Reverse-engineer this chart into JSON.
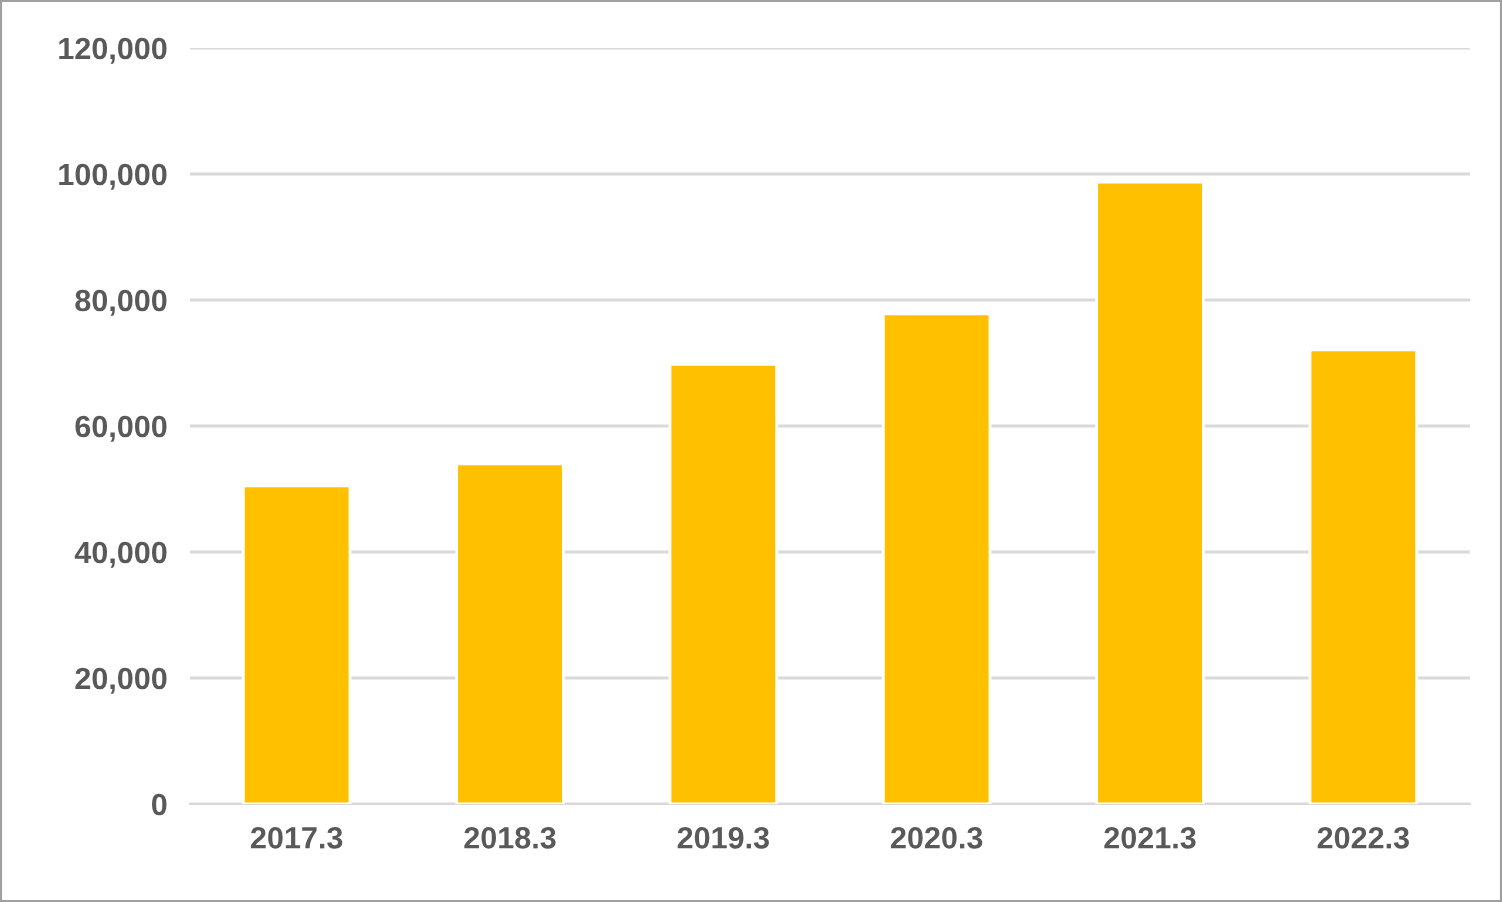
{
  "chart_data": {
    "type": "bar",
    "categories": [
      "2017.3",
      "2018.3",
      "2019.3",
      "2020.3",
      "2021.3",
      "2022.3"
    ],
    "values": [
      50500,
      54000,
      69800,
      77800,
      98700,
      72100
    ],
    "color": "#ffc000",
    "ylim": [
      0,
      120000
    ],
    "yticks": [
      {
        "value": 0,
        "label": "0"
      },
      {
        "value": 20000,
        "label": "20,000"
      },
      {
        "value": 40000,
        "label": "40,000"
      },
      {
        "value": 60000,
        "label": "60,000"
      },
      {
        "value": 80000,
        "label": "80,000"
      },
      {
        "value": 100000,
        "label": "100,000"
      },
      {
        "value": 120000,
        "label": "120,000"
      }
    ],
    "grid": "y"
  }
}
